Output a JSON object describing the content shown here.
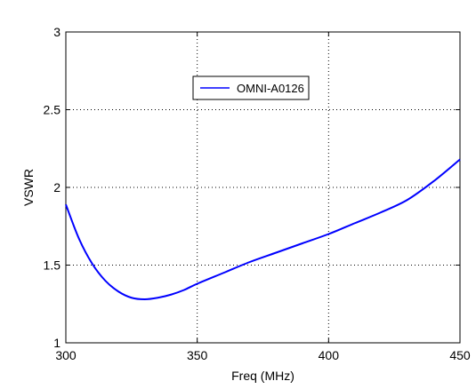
{
  "chart_data": {
    "type": "line",
    "title": "",
    "xlabel": "Freq (MHz)",
    "ylabel": "VSWR",
    "xlim": [
      300,
      450
    ],
    "ylim": [
      1,
      3
    ],
    "xticks": [
      300,
      350,
      400,
      450
    ],
    "xtick_labels": [
      "300",
      "350",
      "400",
      "450"
    ],
    "yticks": [
      1,
      1.5,
      2,
      2.5,
      3
    ],
    "ytick_labels": [
      "1",
      "1.5",
      "2",
      "2.5",
      "3"
    ],
    "grid": true,
    "legend_position": "top-center",
    "series": [
      {
        "name": "OMNI-A0126",
        "color": "#0000ff",
        "x": [
          300,
          305,
          310,
          315,
          320,
          325,
          330,
          335,
          340,
          345,
          350,
          360,
          370,
          380,
          390,
          400,
          410,
          420,
          430,
          440,
          450
        ],
        "y": [
          1.89,
          1.67,
          1.51,
          1.4,
          1.33,
          1.29,
          1.28,
          1.29,
          1.31,
          1.34,
          1.38,
          1.45,
          1.52,
          1.58,
          1.64,
          1.7,
          1.77,
          1.84,
          1.92,
          2.04,
          2.18
        ]
      }
    ]
  }
}
